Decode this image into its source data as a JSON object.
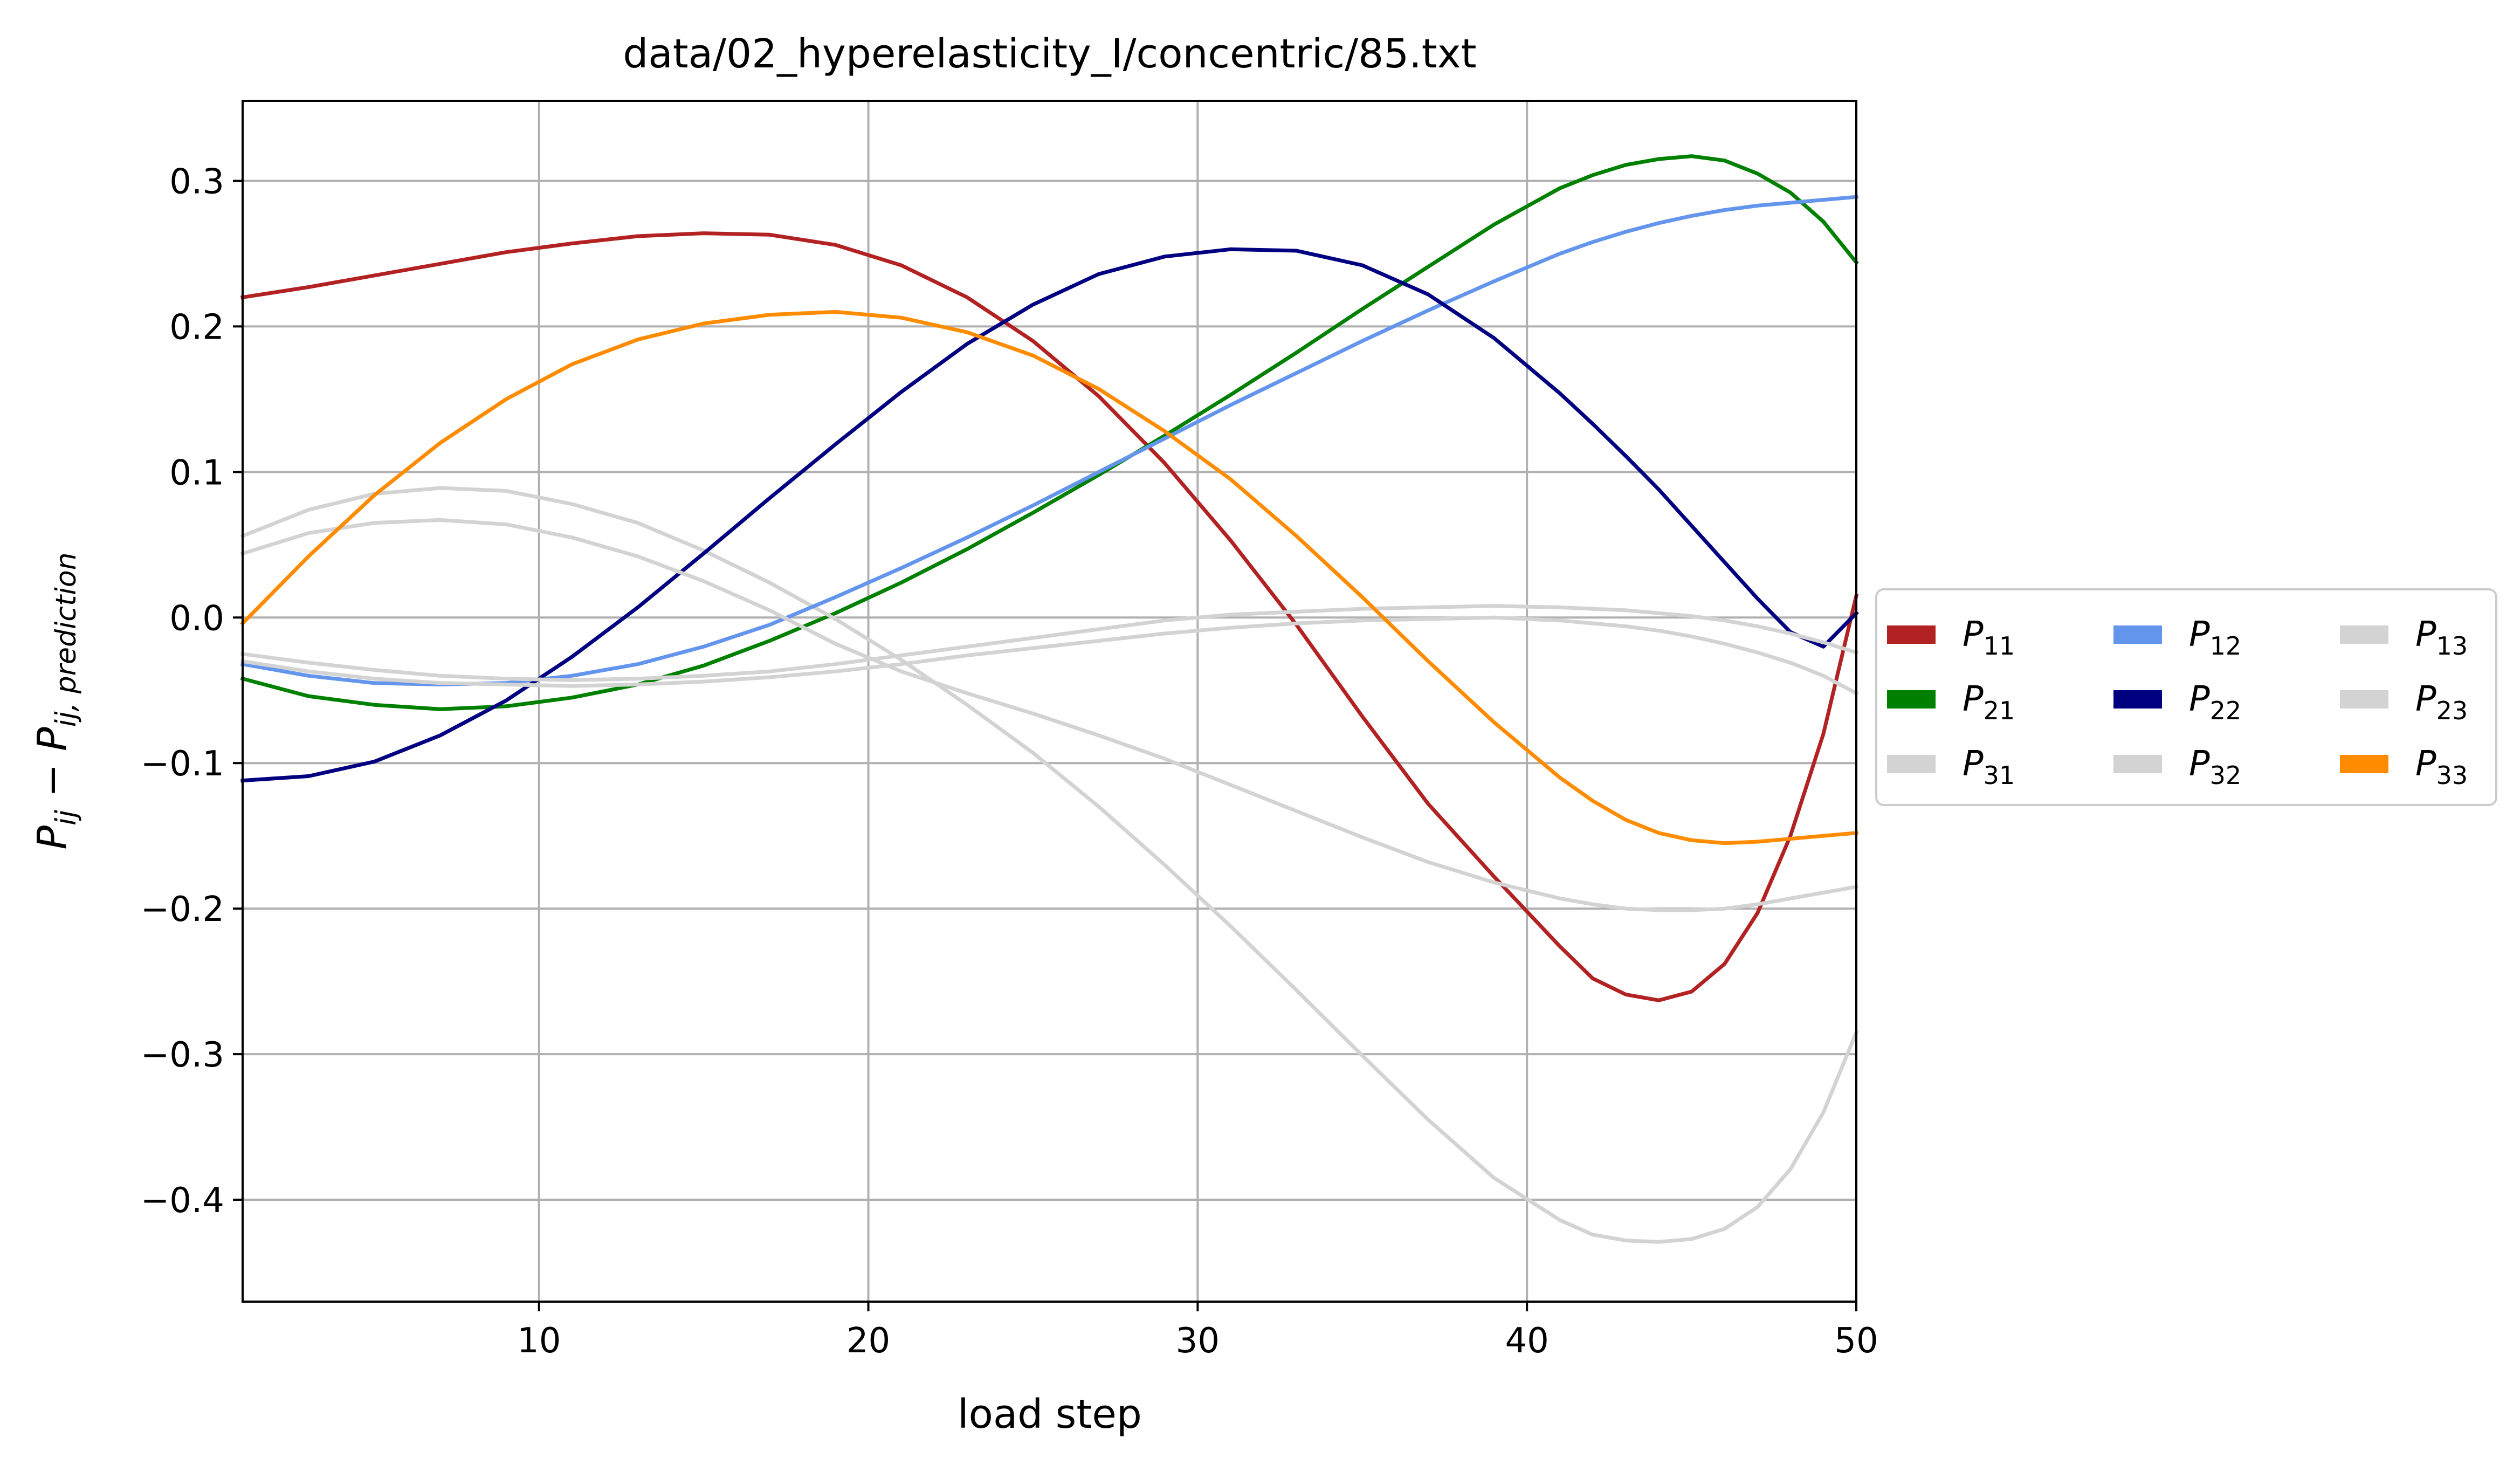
{
  "chart_data": {
    "type": "line",
    "title": "data/02_hyperelasticity_I/concentric/85.txt",
    "xlabel": "load step",
    "ylabel": {
      "main": "P",
      "sub1": "ij",
      "minus": " − ",
      "sub2": "ij, prediction"
    },
    "xlim": [
      1,
      50
    ],
    "ylim": [
      -0.47,
      0.355
    ],
    "xticks": [
      10,
      20,
      30,
      40,
      50
    ],
    "xtick_labels": [
      "10",
      "20",
      "30",
      "40",
      "50"
    ],
    "yticks": [
      -0.4,
      -0.3,
      -0.2,
      -0.1,
      0.0,
      0.1,
      0.2,
      0.3
    ],
    "ytick_labels": [
      "−0.4",
      "−0.3",
      "−0.2",
      "−0.1",
      "0.0",
      "0.1",
      "0.2",
      "0.3"
    ],
    "grid": true,
    "legend_placement": "right, outside",
    "legend_columns": 3,
    "x": [
      1,
      3,
      5,
      7,
      9,
      11,
      13,
      15,
      17,
      19,
      21,
      23,
      25,
      27,
      29,
      31,
      33,
      35,
      37,
      39,
      41,
      42,
      43,
      44,
      45,
      46,
      47,
      48,
      49,
      50
    ],
    "series": [
      {
        "name": "P",
        "sub": "11",
        "color": "#b22222",
        "values": [
          0.22,
          0.227,
          0.235,
          0.243,
          0.251,
          0.257,
          0.262,
          0.264,
          0.263,
          0.256,
          0.242,
          0.22,
          0.19,
          0.152,
          0.106,
          0.053,
          -0.005,
          -0.068,
          -0.128,
          -0.178,
          -0.226,
          -0.248,
          -0.259,
          -0.263,
          -0.257,
          -0.238,
          -0.203,
          -0.15,
          -0.08,
          0.015
        ]
      },
      {
        "name": "P",
        "sub": "21",
        "color": "#008000",
        "values": [
          -0.042,
          -0.054,
          -0.06,
          -0.063,
          -0.061,
          -0.055,
          -0.046,
          -0.033,
          -0.016,
          0.003,
          0.024,
          0.047,
          0.072,
          0.098,
          0.125,
          0.153,
          0.182,
          0.212,
          0.241,
          0.27,
          0.295,
          0.304,
          0.311,
          0.315,
          0.317,
          0.314,
          0.305,
          0.292,
          0.272,
          0.244
        ]
      },
      {
        "name": "P",
        "sub": "31",
        "color": "#d3d3d3",
        "values": [
          0.056,
          0.074,
          0.085,
          0.089,
          0.087,
          0.078,
          0.065,
          0.046,
          0.024,
          -0.001,
          -0.029,
          -0.06,
          -0.093,
          -0.13,
          -0.17,
          -0.212,
          -0.256,
          -0.301,
          -0.345,
          -0.385,
          -0.414,
          -0.424,
          -0.428,
          -0.429,
          -0.427,
          -0.42,
          -0.405,
          -0.379,
          -0.34,
          -0.285
        ]
      },
      {
        "name": "P",
        "sub": "12",
        "color": "#6495ed",
        "values": [
          -0.032,
          -0.04,
          -0.045,
          -0.046,
          -0.045,
          -0.04,
          -0.032,
          -0.02,
          -0.005,
          0.014,
          0.034,
          0.055,
          0.077,
          0.1,
          0.123,
          0.146,
          0.168,
          0.19,
          0.211,
          0.231,
          0.25,
          0.258,
          0.265,
          0.271,
          0.276,
          0.28,
          0.283,
          0.285,
          0.287,
          0.289
        ]
      },
      {
        "name": "P",
        "sub": "22",
        "color": "#000080",
        "values": [
          -0.112,
          -0.109,
          -0.099,
          -0.081,
          -0.057,
          -0.027,
          0.007,
          0.044,
          0.082,
          0.119,
          0.155,
          0.188,
          0.215,
          0.236,
          0.248,
          0.253,
          0.252,
          0.242,
          0.222,
          0.192,
          0.154,
          0.133,
          0.111,
          0.088,
          0.063,
          0.038,
          0.013,
          -0.01,
          -0.02,
          0.003
        ]
      },
      {
        "name": "P",
        "sub": "32",
        "color": "#d3d3d3",
        "values": [
          0.044,
          0.058,
          0.065,
          0.067,
          0.064,
          0.055,
          0.042,
          0.025,
          0.005,
          -0.018,
          -0.037,
          -0.052,
          -0.066,
          -0.081,
          -0.097,
          -0.115,
          -0.133,
          -0.151,
          -0.168,
          -0.182,
          -0.193,
          -0.197,
          -0.2,
          -0.201,
          -0.201,
          -0.2,
          -0.197,
          -0.193,
          -0.189,
          -0.185
        ]
      },
      {
        "name": "P",
        "sub": "13",
        "color": "#d3d3d3",
        "values": [
          -0.025,
          -0.031,
          -0.036,
          -0.04,
          -0.042,
          -0.043,
          -0.042,
          -0.04,
          -0.037,
          -0.032,
          -0.026,
          -0.02,
          -0.014,
          -0.008,
          -0.002,
          0.002,
          0.004,
          0.006,
          0.007,
          0.008,
          0.007,
          0.006,
          0.005,
          0.003,
          0.001,
          -0.002,
          -0.006,
          -0.011,
          -0.017,
          -0.024
        ]
      },
      {
        "name": "P",
        "sub": "23",
        "color": "#d3d3d3",
        "values": [
          -0.03,
          -0.037,
          -0.042,
          -0.045,
          -0.046,
          -0.047,
          -0.046,
          -0.044,
          -0.041,
          -0.037,
          -0.032,
          -0.026,
          -0.021,
          -0.016,
          -0.011,
          -0.007,
          -0.004,
          -0.002,
          -0.001,
          0.0,
          -0.002,
          -0.004,
          -0.006,
          -0.009,
          -0.013,
          -0.018,
          -0.024,
          -0.031,
          -0.04,
          -0.052
        ]
      },
      {
        "name": "P",
        "sub": "33",
        "color": "#ff8c00",
        "values": [
          -0.004,
          0.042,
          0.084,
          0.12,
          0.15,
          0.174,
          0.191,
          0.202,
          0.208,
          0.21,
          0.206,
          0.196,
          0.18,
          0.157,
          0.128,
          0.095,
          0.056,
          0.014,
          -0.03,
          -0.072,
          -0.11,
          -0.126,
          -0.139,
          -0.148,
          -0.153,
          -0.155,
          -0.154,
          -0.152,
          -0.15,
          -0.148
        ]
      }
    ]
  }
}
